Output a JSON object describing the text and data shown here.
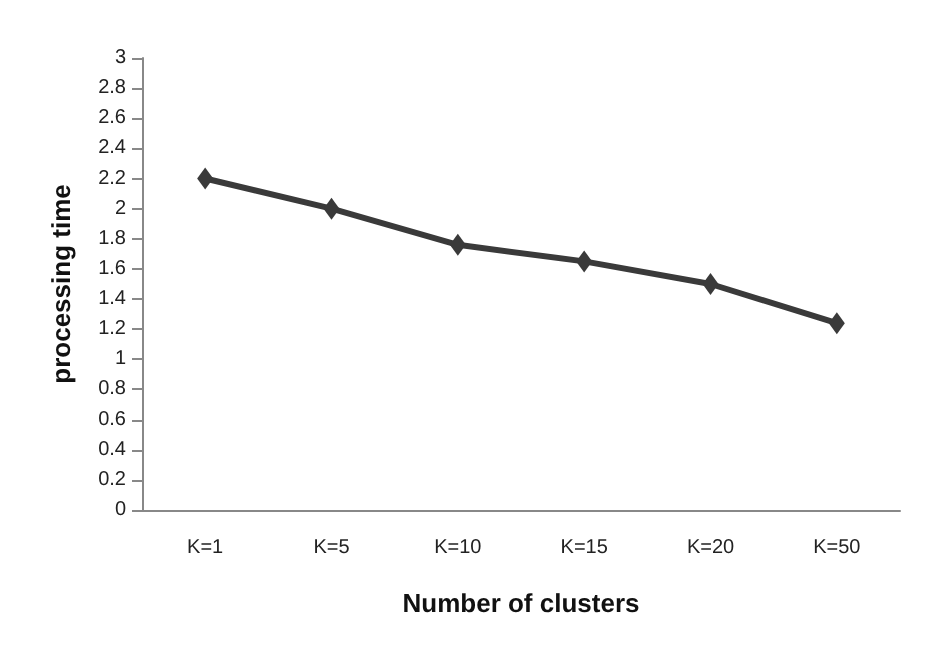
{
  "chart_data": {
    "type": "line",
    "xlabel": "Number of clusters",
    "ylabel": "processing time",
    "categories": [
      "K=1",
      "K=5",
      "K=10",
      "K=15",
      "K=20",
      "K=50"
    ],
    "series": [
      {
        "color": "#3a3a3a",
        "values": [
          2.2,
          2.0,
          1.76,
          1.65,
          1.5,
          1.24
        ]
      }
    ],
    "ylim": [
      0,
      3
    ],
    "yticks": [
      0,
      0.2,
      0.4,
      0.6,
      0.8,
      1,
      1.2,
      1.4,
      1.6,
      1.8,
      2,
      2.2,
      2.4,
      2.6,
      2.8,
      3
    ],
    "grid": false,
    "marker": "diamond",
    "line_style": "solid"
  }
}
